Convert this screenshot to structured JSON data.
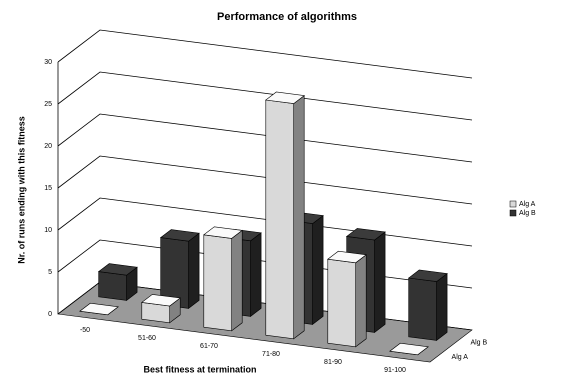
{
  "chart_data": {
    "type": "bar3d",
    "title": "Performance of algorithms",
    "x_label": "Best fitness at termination",
    "y_label": "Nr. of runs ending with this fitness",
    "categories": [
      "-50",
      "51-60",
      "61-70",
      "71-80",
      "81-90",
      "91-100"
    ],
    "series": [
      {
        "name": "Alg A",
        "color": "#d9d9d9",
        "values": [
          0,
          2,
          11,
          28,
          10,
          0
        ]
      },
      {
        "name": "Alg B",
        "color": "#333333",
        "values": [
          3,
          8,
          9,
          12,
          11,
          7
        ]
      }
    ],
    "ylim": [
      0,
      30
    ],
    "yticks": [
      0,
      5,
      10,
      15,
      20,
      25,
      30
    ],
    "grid": true,
    "legend": "right"
  }
}
